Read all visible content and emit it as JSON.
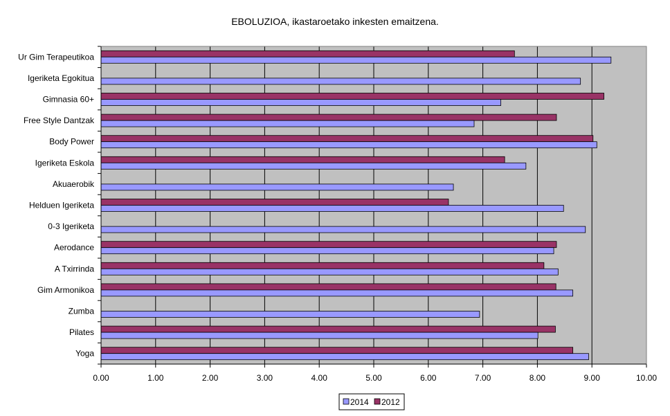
{
  "chart_data": {
    "type": "bar",
    "orientation": "horizontal",
    "title": "EBOLUZIOA, ikastaroetako inkesten emaitzena.",
    "xlabel": "",
    "ylabel": "",
    "xlim": [
      0,
      10
    ],
    "x_ticks": [
      "0.00",
      "1.00",
      "2.00",
      "3.00",
      "4.00",
      "5.00",
      "6.00",
      "7.00",
      "8.00",
      "9.00",
      "10.00"
    ],
    "grid": true,
    "legend_position": "bottom-center",
    "categories": [
      "Ur Gim Terapeutikoa",
      "Igeriketa Egokitua",
      "Gimnasia 60+",
      "Free Style Dantzak",
      "Body Power",
      "Igeriketa Eskola",
      "Akuaerobik",
      "Helduen Igeriketa",
      "0-3 Igeriketa",
      "Aerodance",
      "A Txirrinda",
      "Gim Armonikoa",
      "Zumba",
      "Pilates",
      "Yoga"
    ],
    "series": [
      {
        "name": "2014",
        "color": "#9999ff",
        "values": [
          9.35,
          8.79,
          7.33,
          6.84,
          9.09,
          7.79,
          6.46,
          8.48,
          8.88,
          8.3,
          8.38,
          8.65,
          6.94,
          8.01,
          8.94
        ]
      },
      {
        "name": "2012",
        "color": "#993366",
        "values": [
          7.58,
          null,
          9.22,
          8.35,
          9.02,
          7.4,
          null,
          6.37,
          null,
          8.35,
          8.12,
          8.34,
          null,
          8.33,
          8.65
        ]
      }
    ],
    "colors": {
      "plot_background": "#c0c0c0",
      "grid": "#000000",
      "border": "#808080"
    }
  }
}
